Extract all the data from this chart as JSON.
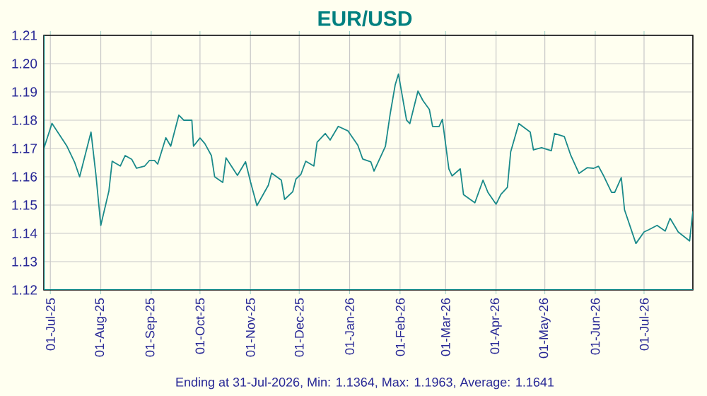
{
  "chart_data": {
    "type": "line",
    "title": "EUR/USD",
    "annotations": [
      "Ending at 31-Jul-2026, Min: 1.1364, Max: 1.1963, Average: 1.1641"
    ],
    "x": [
      "2025-06-27",
      "2025-07-02",
      "2025-07-11",
      "2025-07-16",
      "2025-07-19",
      "2025-07-26",
      "2025-07-29",
      "2025-08-01",
      "2025-08-06",
      "2025-08-08",
      "2025-08-13",
      "2025-08-16",
      "2025-08-20",
      "2025-08-23",
      "2025-08-28",
      "2025-08-31",
      "2025-09-03",
      "2025-09-05",
      "2025-09-10",
      "2025-09-13",
      "2025-09-18",
      "2025-09-21",
      "2025-09-26",
      "2025-09-27",
      "2025-10-01",
      "2025-10-04",
      "2025-10-08",
      "2025-10-10",
      "2025-10-15",
      "2025-10-17",
      "2025-10-24",
      "2025-10-29",
      "2025-11-01",
      "2025-11-05",
      "2025-11-12",
      "2025-11-14",
      "2025-11-20",
      "2025-11-22",
      "2025-11-27",
      "2025-11-29",
      "2025-12-02",
      "2025-12-05",
      "2025-12-10",
      "2025-12-12",
      "2025-12-17",
      "2025-12-20",
      "2025-12-25",
      "2025-12-31",
      "2026-01-06",
      "2026-01-09",
      "2026-01-14",
      "2026-01-16",
      "2026-01-23",
      "2026-01-26",
      "2026-01-29",
      "2026-01-31",
      "2026-02-05",
      "2026-02-07",
      "2026-02-12",
      "2026-02-15",
      "2026-02-19",
      "2026-02-21",
      "2026-02-25",
      "2026-02-27",
      "2026-03-03",
      "2026-03-05",
      "2026-03-10",
      "2026-03-12",
      "2026-03-19",
      "2026-03-24",
      "2026-03-27",
      "2026-04-01",
      "2026-04-04",
      "2026-04-08",
      "2026-04-10",
      "2026-04-15",
      "2026-04-22",
      "2026-04-24",
      "2026-04-29",
      "2026-05-05",
      "2026-05-07",
      "2026-05-13",
      "2026-05-17",
      "2026-05-22",
      "2026-05-27",
      "2026-05-31",
      "2026-06-03",
      "2026-06-06",
      "2026-06-11",
      "2026-06-13",
      "2026-06-17",
      "2026-06-19",
      "2026-06-26",
      "2026-07-01",
      "2026-07-04",
      "2026-07-09",
      "2026-07-14",
      "2026-07-17",
      "2026-07-22",
      "2026-07-29",
      "2026-07-31"
    ],
    "series": [
      {
        "color": "#1a8a8a",
        "values": [
          1.17,
          1.1789,
          1.171,
          1.165,
          1.16,
          1.1758,
          1.1608,
          1.1428,
          1.155,
          1.1655,
          1.1638,
          1.1675,
          1.1662,
          1.163,
          1.1638,
          1.1658,
          1.1658,
          1.1645,
          1.1738,
          1.1708,
          1.1818,
          1.18,
          1.18,
          1.1708,
          1.1737,
          1.1717,
          1.1675,
          1.16,
          1.158,
          1.1667,
          1.1605,
          1.1653,
          1.1583,
          1.1498,
          1.157,
          1.1613,
          1.1588,
          1.152,
          1.1547,
          1.1592,
          1.1608,
          1.1655,
          1.1638,
          1.1722,
          1.1753,
          1.173,
          1.1778,
          1.1762,
          1.1712,
          1.1663,
          1.1653,
          1.162,
          1.1708,
          1.1825,
          1.1925,
          1.1963,
          1.18,
          1.1788,
          1.1903,
          1.187,
          1.1838,
          1.1778,
          1.1778,
          1.1803,
          1.1628,
          1.1603,
          1.1628,
          1.1537,
          1.1508,
          1.1588,
          1.1545,
          1.1503,
          1.1538,
          1.1563,
          1.1688,
          1.1788,
          1.1758,
          1.1695,
          1.1703,
          1.1692,
          1.1753,
          1.1742,
          1.1675,
          1.1612,
          1.1632,
          1.163,
          1.1637,
          1.1605,
          1.1545,
          1.1545,
          1.1597,
          1.1483,
          1.1364,
          1.1405,
          1.1413,
          1.1428,
          1.1408,
          1.1453,
          1.1405,
          1.1373,
          1.1478
        ]
      }
    ],
    "xlim": [
      "2025-06-27",
      "2026-07-31"
    ],
    "xticks": [
      {
        "value": "2025-07-01",
        "label": "01-Jul-25"
      },
      {
        "value": "2025-08-01",
        "label": "01-Aug-25"
      },
      {
        "value": "2025-09-01",
        "label": "01-Sep-25"
      },
      {
        "value": "2025-10-01",
        "label": "01-Oct-25"
      },
      {
        "value": "2025-11-01",
        "label": "01-Nov-25"
      },
      {
        "value": "2025-12-01",
        "label": "01-Dec-25"
      },
      {
        "value": "2026-01-01",
        "label": "01-Jan-26"
      },
      {
        "value": "2026-02-01",
        "label": "01-Feb-26"
      },
      {
        "value": "2026-03-01",
        "label": "01-Mar-26"
      },
      {
        "value": "2026-04-01",
        "label": "01-Apr-26"
      },
      {
        "value": "2026-05-01",
        "label": "01-May-26"
      },
      {
        "value": "2026-06-01",
        "label": "01-Jun-26"
      },
      {
        "value": "2026-07-01",
        "label": "01-Jul-26"
      }
    ],
    "ylim": [
      1.12,
      1.21
    ],
    "yticks": [
      1.12,
      1.13,
      1.14,
      1.15,
      1.16,
      1.17,
      1.18,
      1.19,
      {
        "value": 1.2,
        "label": "1.20"
      },
      1.21
    ],
    "grid": true,
    "marker": "none",
    "line_style": "solid"
  }
}
